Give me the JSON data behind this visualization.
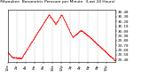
{
  "title": "Milwaukee  Barometric Pressure per Minute  (Last 24 Hours)",
  "line_color": "#ff0000",
  "bg_color": "#ffffff",
  "grid_color": "#999999",
  "ylim": [
    29.35,
    30.45
  ],
  "ytick_labels": [
    "29.40",
    "29.50",
    "29.60",
    "29.70",
    "29.80",
    "29.90",
    "30.00",
    "30.10",
    "30.20",
    "30.30",
    "30.40"
  ],
  "ytick_vals": [
    29.4,
    29.5,
    29.6,
    29.7,
    29.8,
    29.9,
    30.0,
    30.1,
    30.2,
    30.3,
    30.4
  ],
  "num_points": 1440,
  "marker_size": 0.6,
  "title_fontsize": 3.2,
  "tick_fontsize": 3.0
}
